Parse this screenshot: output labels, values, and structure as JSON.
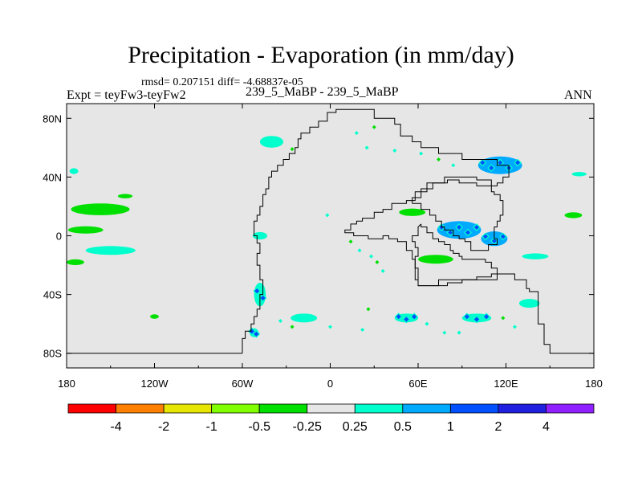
{
  "title": "Precipitation - Evaporation (in mm/day)",
  "subtitle_stats": "rmsd= 0.207151 diff= -4.68837e-05",
  "left_label": "Expt = teyFw3-teyFw2",
  "center_label": "239_5_MaBP - 239_5_MaBP",
  "right_label": "ANN",
  "chart_data": {
    "type": "heatmap",
    "projection": "cylindrical-equidistant",
    "xlim": [
      -180,
      180
    ],
    "ylim": [
      -90,
      90
    ],
    "x_ticks": [
      {
        "value": -180,
        "label": "180"
      },
      {
        "value": -120,
        "label": "120W"
      },
      {
        "value": -60,
        "label": "60W"
      },
      {
        "value": 0,
        "label": "0"
      },
      {
        "value": 60,
        "label": "60E"
      },
      {
        "value": 120,
        "label": "120E"
      },
      {
        "value": 180,
        "label": "180"
      }
    ],
    "y_ticks": [
      {
        "value": 80,
        "label": "80N"
      },
      {
        "value": 40,
        "label": "40N"
      },
      {
        "value": 0,
        "label": "0"
      },
      {
        "value": -40,
        "label": "40S"
      },
      {
        "value": -80,
        "label": "80S"
      }
    ],
    "background_color": "#e6e6e6",
    "colorbar": {
      "colors": [
        "#ff0000",
        "#ff8000",
        "#e6e600",
        "#80ff00",
        "#00e000",
        "#e6e6e6",
        "#00ffcc",
        "#00aaff",
        "#0050ff",
        "#2020e0",
        "#9020ff"
      ],
      "labels": [
        "-4",
        "-2",
        "-1",
        "-0.5",
        "-0.25",
        "0.25",
        "0.5",
        "1",
        "2",
        "4"
      ]
    },
    "coastline": [
      [
        [
          -60,
          -80
        ],
        [
          -60,
          -70
        ],
        [
          -58,
          -70
        ],
        [
          -58,
          -65
        ],
        [
          -54,
          -65
        ],
        [
          -54,
          -60
        ],
        [
          -52,
          -60
        ],
        [
          -52,
          -55
        ],
        [
          -50,
          -55
        ],
        [
          -50,
          -50
        ],
        [
          -48,
          -50
        ],
        [
          -48,
          -40
        ],
        [
          -46,
          -40
        ],
        [
          -46,
          -30
        ],
        [
          -48,
          -30
        ],
        [
          -48,
          -20
        ],
        [
          -50,
          -20
        ],
        [
          -50,
          -12
        ],
        [
          -48,
          -12
        ],
        [
          -48,
          -5
        ],
        [
          -50,
          -5
        ],
        [
          -50,
          0
        ],
        [
          -52,
          0
        ],
        [
          -52,
          10
        ],
        [
          -50,
          10
        ],
        [
          -50,
          14
        ],
        [
          -48,
          14
        ],
        [
          -48,
          20
        ],
        [
          -46,
          20
        ],
        [
          -46,
          28
        ],
        [
          -44,
          28
        ],
        [
          -44,
          32
        ],
        [
          -42,
          32
        ],
        [
          -42,
          40
        ],
        [
          -40,
          40
        ],
        [
          -40,
          44
        ],
        [
          -36,
          44
        ],
        [
          -36,
          48
        ],
        [
          -32,
          48
        ],
        [
          -32,
          52
        ],
        [
          -28,
          52
        ],
        [
          -28,
          56
        ],
        [
          -24,
          56
        ],
        [
          -24,
          60
        ],
        [
          -22,
          60
        ],
        [
          -22,
          66
        ],
        [
          -20,
          66
        ],
        [
          -20,
          70
        ],
        [
          -14,
          70
        ],
        [
          -14,
          74
        ],
        [
          -8,
          74
        ],
        [
          -8,
          78
        ],
        [
          -2,
          78
        ],
        [
          -2,
          84
        ],
        [
          4,
          84
        ],
        [
          4,
          86
        ],
        [
          30,
          86
        ],
        [
          30,
          80
        ],
        [
          44,
          80
        ],
        [
          44,
          76
        ],
        [
          48,
          76
        ],
        [
          48,
          68
        ],
        [
          56,
          68
        ],
        [
          56,
          64
        ],
        [
          62,
          64
        ],
        [
          62,
          60
        ],
        [
          74,
          60
        ],
        [
          74,
          56
        ],
        [
          90,
          56
        ],
        [
          90,
          52
        ],
        [
          114,
          52
        ],
        [
          114,
          48
        ],
        [
          122,
          48
        ],
        [
          122,
          40
        ],
        [
          118,
          40
        ],
        [
          118,
          36
        ],
        [
          114,
          36
        ],
        [
          114,
          34
        ],
        [
          110,
          34
        ],
        [
          110,
          38
        ],
        [
          100,
          38
        ],
        [
          100,
          40
        ],
        [
          78,
          40
        ],
        [
          78,
          36
        ],
        [
          66,
          36
        ],
        [
          66,
          30
        ],
        [
          58,
          30
        ],
        [
          58,
          24
        ],
        [
          52,
          24
        ],
        [
          52,
          22
        ],
        [
          42,
          22
        ],
        [
          42,
          18
        ],
        [
          36,
          18
        ],
        [
          36,
          16
        ],
        [
          30,
          16
        ],
        [
          30,
          12
        ],
        [
          22,
          12
        ],
        [
          22,
          10
        ],
        [
          18,
          10
        ],
        [
          18,
          8
        ],
        [
          14,
          8
        ],
        [
          14,
          4
        ],
        [
          10,
          4
        ],
        [
          10,
          2
        ],
        [
          16,
          2
        ],
        [
          16,
          0
        ],
        [
          26,
          0
        ],
        [
          26,
          -2
        ],
        [
          36,
          -2
        ],
        [
          36,
          0
        ],
        [
          40,
          0
        ],
        [
          40,
          -2
        ],
        [
          46,
          -2
        ],
        [
          46,
          -4
        ],
        [
          52,
          -4
        ],
        [
          52,
          -10
        ],
        [
          56,
          -10
        ],
        [
          56,
          -16
        ],
        [
          58,
          -16
        ],
        [
          58,
          -30
        ],
        [
          60,
          -30
        ],
        [
          60,
          -34
        ],
        [
          80,
          -34
        ],
        [
          80,
          -32
        ],
        [
          90,
          -32
        ],
        [
          90,
          -30
        ],
        [
          100,
          -30
        ],
        [
          100,
          -28
        ],
        [
          110,
          -28
        ],
        [
          110,
          -26
        ],
        [
          126,
          -26
        ],
        [
          126,
          -30
        ],
        [
          134,
          -30
        ],
        [
          134,
          -36
        ],
        [
          136,
          -36
        ],
        [
          136,
          -38
        ],
        [
          142,
          -38
        ],
        [
          142,
          -60
        ],
        [
          146,
          -60
        ],
        [
          146,
          -74
        ],
        [
          150,
          -74
        ],
        [
          150,
          -80
        ],
        [
          180,
          -80
        ]
      ],
      [
        [
          56,
          22
        ],
        [
          62,
          22
        ],
        [
          62,
          18
        ],
        [
          68,
          18
        ],
        [
          68,
          14
        ],
        [
          72,
          14
        ],
        [
          72,
          10
        ],
        [
          76,
          10
        ],
        [
          76,
          6
        ],
        [
          78,
          6
        ],
        [
          78,
          4
        ],
        [
          84,
          4
        ],
        [
          84,
          0
        ],
        [
          88,
          0
        ],
        [
          88,
          -2
        ],
        [
          92,
          -2
        ],
        [
          92,
          -4
        ],
        [
          96,
          -4
        ],
        [
          96,
          -10
        ],
        [
          108,
          -10
        ],
        [
          108,
          -6
        ],
        [
          114,
          -6
        ],
        [
          114,
          -2
        ],
        [
          112,
          -2
        ],
        [
          112,
          6
        ],
        [
          114,
          6
        ],
        [
          114,
          10
        ],
        [
          116,
          10
        ],
        [
          116,
          14
        ],
        [
          118,
          14
        ],
        [
          118,
          24
        ],
        [
          116,
          24
        ],
        [
          116,
          28
        ],
        [
          112,
          28
        ],
        [
          112,
          30
        ],
        [
          110,
          30
        ],
        [
          110,
          34
        ],
        [
          100,
          34
        ],
        [
          100,
          36
        ],
        [
          88,
          36
        ],
        [
          88,
          38
        ],
        [
          80,
          38
        ],
        [
          80,
          36
        ],
        [
          70,
          36
        ],
        [
          70,
          32
        ],
        [
          62,
          32
        ],
        [
          62,
          26
        ],
        [
          56,
          26
        ],
        [
          56,
          22
        ]
      ],
      [
        [
          62,
          8
        ],
        [
          62,
          6
        ],
        [
          66,
          6
        ],
        [
          66,
          2
        ],
        [
          70,
          2
        ],
        [
          70,
          -2
        ],
        [
          74,
          -2
        ],
        [
          74,
          -4
        ],
        [
          78,
          -4
        ],
        [
          78,
          -6
        ],
        [
          82,
          -6
        ],
        [
          82,
          -10
        ],
        [
          84,
          -10
        ],
        [
          84,
          -12
        ],
        [
          88,
          -12
        ],
        [
          88,
          -14
        ],
        [
          90,
          -14
        ],
        [
          90,
          -16
        ],
        [
          106,
          -16
        ],
        [
          106,
          -18
        ],
        [
          110,
          -18
        ],
        [
          110,
          -22
        ],
        [
          114,
          -22
        ],
        [
          114,
          -30
        ],
        [
          74,
          -30
        ],
        [
          74,
          -34
        ],
        [
          60,
          -34
        ],
        [
          60,
          -22
        ],
        [
          58,
          -22
        ],
        [
          58,
          -14
        ],
        [
          60,
          -14
        ],
        [
          60,
          -8
        ],
        [
          58,
          -8
        ],
        [
          58,
          -4
        ],
        [
          56,
          -4
        ],
        [
          56,
          0
        ],
        [
          60,
          0
        ],
        [
          60,
          6
        ],
        [
          62,
          8
        ]
      ],
      [
        [
          -180,
          -80
        ],
        [
          -60,
          -80
        ]
      ]
    ],
    "features": [
      {
        "lon": -157,
        "lat": 18,
        "w": 40,
        "h": 8,
        "value": -0.3,
        "label": "central-pacific-negative-band"
      },
      {
        "lon": -167,
        "lat": 4,
        "w": 24,
        "h": 5,
        "value": -0.3,
        "label": "tropical-pacific-negative-band"
      },
      {
        "lon": -140,
        "lat": 27,
        "w": 10,
        "h": 3,
        "value": -0.3,
        "label": "north-pacific-negative-band"
      },
      {
        "lon": -150,
        "lat": -10,
        "w": 34,
        "h": 6,
        "value": 0.3,
        "label": "south-pacific-positive-band"
      },
      {
        "lon": -174,
        "lat": -18,
        "w": 12,
        "h": 4,
        "value": -0.3,
        "label": "west-south-pacific-negative-band"
      },
      {
        "lon": -175,
        "lat": 44,
        "w": 6,
        "h": 4,
        "value": 0.3,
        "label": "dateline-positive-patch"
      },
      {
        "lon": -120,
        "lat": -55,
        "w": 6,
        "h": 3,
        "value": -0.3,
        "label": "southeast-pacific-negative-patch"
      },
      {
        "lon": -40,
        "lat": 64,
        "w": 16,
        "h": 8,
        "value": 0.4,
        "label": "greenland-positive-patch"
      },
      {
        "lon": -48,
        "lat": 0,
        "w": 10,
        "h": 5,
        "value": 0.3,
        "label": "amazon-positive-patch"
      },
      {
        "lon": -48,
        "lat": -40,
        "w": 8,
        "h": 16,
        "value": 0.5,
        "label": "south-atlantic-coast-positive"
      },
      {
        "lon": -52,
        "lat": -66,
        "w": 6,
        "h": 6,
        "value": 0.5,
        "label": "southern-tip-positive"
      },
      {
        "lon": 56,
        "lat": 16,
        "w": 18,
        "h": 5,
        "value": -0.3,
        "label": "arabian-negative-band"
      },
      {
        "lon": 72,
        "lat": -16,
        "w": 24,
        "h": 6,
        "value": -0.3,
        "label": "indian-ocean-negative-band"
      },
      {
        "lon": 88,
        "lat": 4,
        "w": 30,
        "h": 12,
        "value": 0.7,
        "label": "south-asia-positive-region"
      },
      {
        "lon": 112,
        "lat": -2,
        "w": 18,
        "h": 10,
        "value": 0.7,
        "label": "maritime-positive-region"
      },
      {
        "lon": 116,
        "lat": 48,
        "w": 30,
        "h": 12,
        "value": 0.7,
        "label": "east-asia-positive-region"
      },
      {
        "lon": 166,
        "lat": 14,
        "w": 12,
        "h": 4,
        "value": -0.3,
        "label": "west-pacific-negative-patch"
      },
      {
        "lon": 170,
        "lat": 42,
        "w": 10,
        "h": 3,
        "value": 0.3,
        "label": "northwest-pacific-positive-patch"
      },
      {
        "lon": 140,
        "lat": -14,
        "w": 18,
        "h": 4,
        "value": 0.3,
        "label": "southwest-pacific-positive-patch"
      },
      {
        "lon": 136,
        "lat": -46,
        "w": 14,
        "h": 6,
        "value": 0.4,
        "label": "southern-ocean-positive-patch"
      },
      {
        "lon": -18,
        "lat": -56,
        "w": 18,
        "h": 6,
        "value": 0.4,
        "label": "south-atlantic-positive-patch"
      },
      {
        "lon": 52,
        "lat": -56,
        "w": 16,
        "h": 6,
        "value": 0.5,
        "label": "south-indian-positive-patch-1"
      },
      {
        "lon": 100,
        "lat": -56,
        "w": 20,
        "h": 6,
        "value": 0.5,
        "label": "south-indian-positive-patch-2"
      }
    ],
    "speckles": [
      {
        "lon": -26,
        "lat": 59
      },
      {
        "lon": 18,
        "lat": 70
      },
      {
        "lon": 25,
        "lat": 60
      },
      {
        "lon": 30,
        "lat": 74
      },
      {
        "lon": 44,
        "lat": 58
      },
      {
        "lon": 62,
        "lat": 56
      },
      {
        "lon": 74,
        "lat": 52
      },
      {
        "lon": 84,
        "lat": 48
      },
      {
        "lon": -2,
        "lat": 14
      },
      {
        "lon": 14,
        "lat": -4
      },
      {
        "lon": 20,
        "lat": -10
      },
      {
        "lon": 28,
        "lat": -14
      },
      {
        "lon": 32,
        "lat": -18
      },
      {
        "lon": 36,
        "lat": -24
      },
      {
        "lon": -34,
        "lat": -58
      },
      {
        "lon": -26,
        "lat": -62
      },
      {
        "lon": 0,
        "lat": -62
      },
      {
        "lon": 22,
        "lat": -64
      },
      {
        "lon": 26,
        "lat": -50
      },
      {
        "lon": 78,
        "lat": -66
      },
      {
        "lon": 88,
        "lat": -66
      },
      {
        "lon": 118,
        "lat": -56
      },
      {
        "lon": 126,
        "lat": -62
      },
      {
        "lon": 66,
        "lat": -60
      }
    ]
  }
}
